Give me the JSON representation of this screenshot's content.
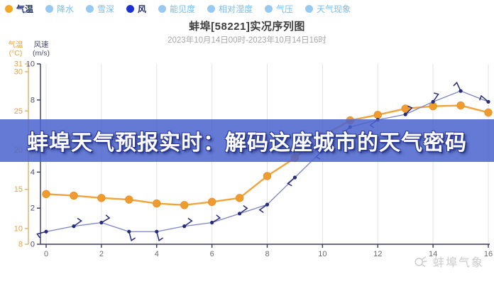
{
  "toolbar": {
    "items": [
      {
        "name": "temperature",
        "label": "气温",
        "active": true,
        "dot_color": "#F5A623",
        "text_color": "#22306E"
      },
      {
        "name": "precipitation",
        "label": "降水",
        "active": false,
        "dot_color": "#97C9F1",
        "text_color": "#79BCEE"
      },
      {
        "name": "snow-depth",
        "label": "雪深",
        "active": false,
        "dot_color": "#97C9F1",
        "text_color": "#79BCEE"
      },
      {
        "name": "wind",
        "label": "风",
        "active": true,
        "dot_color": "#1B2FD2",
        "text_color": "#22306E"
      },
      {
        "name": "visibility",
        "label": "能见度",
        "active": false,
        "dot_color": "#97C9F1",
        "text_color": "#79BCEE"
      },
      {
        "name": "relative-humidity",
        "label": "相对湿度",
        "active": false,
        "dot_color": "#97C9F1",
        "text_color": "#79BCEE"
      },
      {
        "name": "pressure",
        "label": "气压",
        "active": false,
        "dot_color": "#97C9F1",
        "text_color": "#79BCEE"
      },
      {
        "name": "weather-phenomena",
        "label": "天气现象",
        "active": false,
        "dot_color": "#97C9F1",
        "text_color": "#79BCEE"
      }
    ]
  },
  "header": {
    "title": "蚌埠[58221]实况序列图",
    "subtitle": "2023年10月14日00时-2023年10月14日16时"
  },
  "banner": {
    "text": "蚌埠天气预报实时：解码这座城市的天气密码",
    "bg_color": "#4A63CD",
    "bg_opacity": 0.85
  },
  "watermark": {
    "text": "蚌埠气象"
  },
  "chart_data": {
    "type": "line",
    "title": "蚌埠[58221]实况序列图",
    "x_label_unit": "时 (hour of 2023-10-14)",
    "x": [
      0,
      1,
      2,
      3,
      4,
      5,
      6,
      7,
      8,
      9,
      10,
      11,
      12,
      13,
      14,
      15,
      16
    ],
    "x_ticks": [
      0,
      2,
      4,
      6,
      8,
      10,
      12,
      14,
      16
    ],
    "xlim": [
      0,
      16
    ],
    "grid": "vertical gridlines at even hours only",
    "grid_color": "#E3E3E3",
    "series": [
      {
        "name": "气温",
        "unit": "°C",
        "axis_label_lines": "气温\n(°C)",
        "axis_side": "left-outer",
        "ticks": [
          8,
          10,
          15,
          20,
          25,
          30,
          31
        ],
        "range": [
          8,
          31
        ],
        "line_color": "#F2A43C",
        "marker": "circle",
        "marker_color": "#F09B2F",
        "axis_line_color": "#DDB269",
        "tick_text_color": "#E8A23C",
        "values": [
          14.4,
          14.2,
          13.9,
          13.7,
          13.2,
          13.0,
          13.4,
          13.9,
          16.7,
          19.0,
          21.8,
          23.8,
          24.5,
          25.3,
          25.6,
          25.7,
          24.8
        ]
      },
      {
        "name": "风速",
        "unit": "m/s",
        "axis_label_lines": "风速\n(m/s)",
        "axis_side": "left-inner",
        "ticks": [
          0,
          2,
          4,
          6,
          8,
          10
        ],
        "range": [
          0,
          10
        ],
        "line_color": "#7B84C8",
        "marker": "wind-barb",
        "marker_color": "#262B7D",
        "axis_line_color": "#3A3A60",
        "tick_text_color": "#4A4A6E",
        "values": [
          0.7,
          1.0,
          1.2,
          0.7,
          0.7,
          1.0,
          1.2,
          1.7,
          2.2,
          3.7,
          5.2,
          6.5,
          6.9,
          7.2,
          7.9,
          8.5,
          7.9
        ],
        "barb_angles_deg": [
          195,
          35,
          30,
          285,
          285,
          35,
          30,
          35,
          215,
          220,
          225,
          220,
          215,
          45,
          55,
          115,
          140
        ]
      }
    ],
    "x_tick_text_color": "#6b6b6b",
    "x_axis_color": "#3A3A60",
    "legend_position": "top toolbar row"
  }
}
